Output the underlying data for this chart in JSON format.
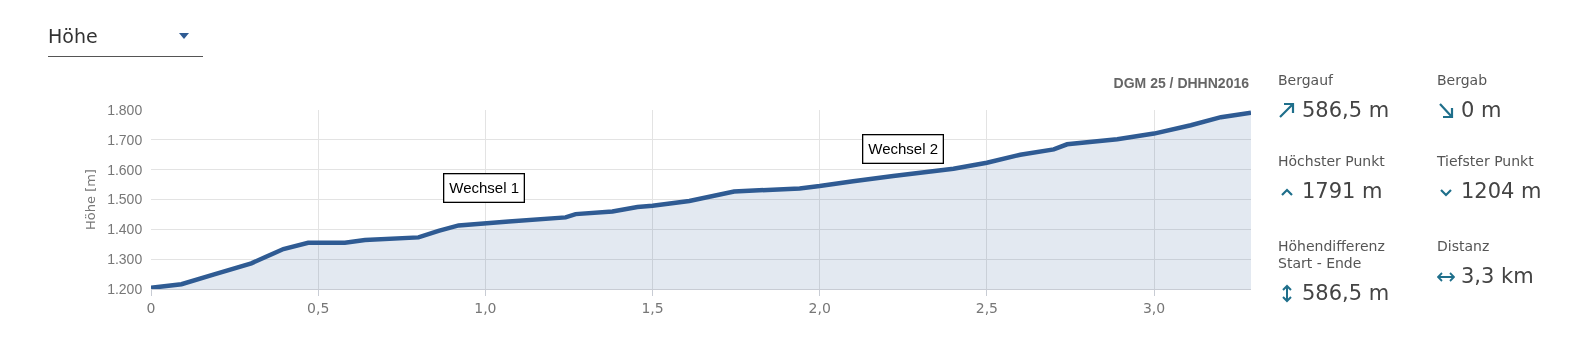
{
  "chart_data": {
    "type": "area",
    "ylabel": "Höhe [m]",
    "color": "#2f5b93",
    "line_style": "solid",
    "marker": "none",
    "grid": true,
    "legend": false,
    "x": [
      0,
      0.091,
      0.189,
      0.3,
      0.396,
      0.47,
      0.58,
      0.64,
      0.8,
      0.86,
      0.92,
      1.07,
      1.24,
      1.27,
      1.38,
      1.455,
      1.5,
      1.61,
      1.744,
      1.94,
      2.0,
      2.1,
      2.22,
      2.4,
      2.5,
      2.6,
      2.7,
      2.74,
      2.89,
      3.0,
      3.11,
      3.2,
      3.29
    ],
    "values": [
      1204,
      1216,
      1249,
      1286,
      1334,
      1355,
      1355,
      1364,
      1373,
      1395,
      1413,
      1426,
      1440,
      1451,
      1460,
      1475,
      1479,
      1495,
      1527,
      1537,
      1545,
      1561,
      1579,
      1603,
      1623,
      1650,
      1668,
      1685,
      1702,
      1721,
      1749,
      1776,
      1791
    ],
    "xlim": [
      0,
      3.29
    ],
    "xticks": [
      0,
      {
        "value": 0.5,
        "label": "0,5"
      },
      {
        "value": 1,
        "label": "1,0"
      },
      {
        "value": 1.5,
        "label": "1,5"
      },
      {
        "value": 2,
        "label": "2,0"
      },
      {
        "value": 2.5,
        "label": "2,5"
      },
      {
        "value": 3,
        "label": "3,0"
      }
    ],
    "ylim": [
      1200,
      1800
    ],
    "yticks": [
      {
        "value": 1200,
        "label": "1.200"
      },
      {
        "value": 1300,
        "label": "1.300"
      },
      {
        "value": 1400,
        "label": "1.400"
      },
      {
        "value": 1500,
        "label": "1.500"
      },
      {
        "value": 1600,
        "label": "1.600"
      },
      {
        "value": 1700,
        "label": "1.700"
      },
      {
        "value": 1800,
        "label": "1.800"
      }
    ],
    "annotations": [
      "Höhe",
      "DGM 25 / DHHN2016",
      "Bergauf",
      "586,5 m",
      "Bergab",
      "0 m",
      "Höchster Punkt",
      "1791 m",
      "Tiefster Punkt",
      "1204 m",
      "Höhendifferenz\nStart - Ende",
      "586,5 m",
      "Distanz",
      "3,3 km",
      "Wechsel 1",
      "Wechsel 2"
    ]
  }
}
